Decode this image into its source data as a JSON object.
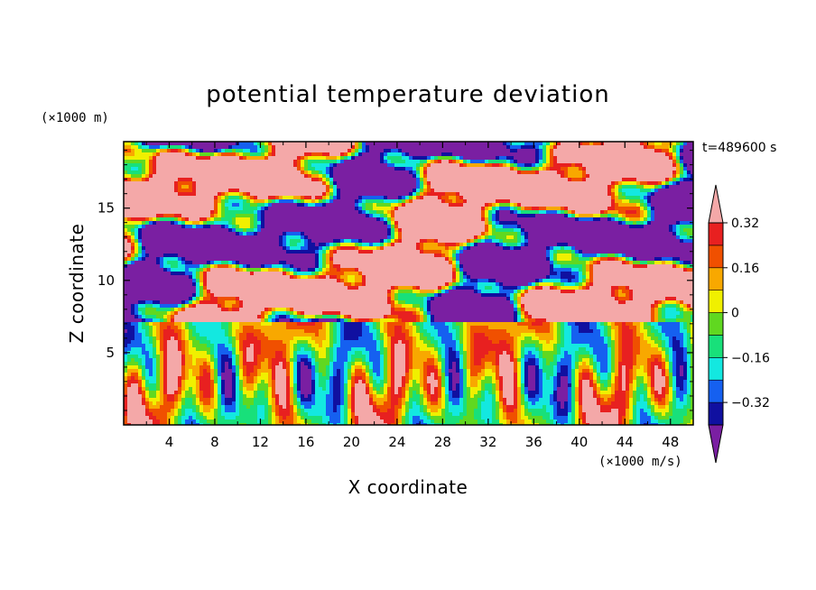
{
  "chart_data": {
    "type": "heatmap",
    "title": "potential temperature deviation",
    "xlabel": "X coordinate",
    "ylabel": "Z coordinate",
    "x_unit": "(×1000 m/s)",
    "y_unit": "(×1000 m)",
    "time_label": "t=489600 s",
    "xlim": [
      0,
      50
    ],
    "ylim": [
      0,
      19.6
    ],
    "x_ticks": [
      4,
      8,
      12,
      16,
      20,
      24,
      28,
      32,
      36,
      40,
      44,
      48
    ],
    "y_ticks": [
      5,
      10,
      15
    ],
    "colorbar": {
      "levels": [
        -0.4,
        -0.32,
        -0.24,
        -0.16,
        -0.08,
        0,
        0.08,
        0.16,
        0.24,
        0.32,
        0.4
      ],
      "labels": [
        "0.32",
        "0.16",
        "0",
        "−0.16",
        "−0.32"
      ],
      "label_values": [
        0.32,
        0.16,
        0,
        -0.16,
        -0.32
      ],
      "colors": [
        "#7a1fa2",
        "#1010a0",
        "#1560f0",
        "#13e8e0",
        "#18e07a",
        "#60d820",
        "#f0f000",
        "#f8a800",
        "#f05000",
        "#e82020",
        "#f4a8a8"
      ],
      "extend": "both"
    },
    "description_free_fields": {
      "upper_layer": "alternating strips of positive (pink) and negative (purple) deviation above z≈7",
      "lower_layer": "convective plumes with mixed values below z≈7"
    }
  }
}
